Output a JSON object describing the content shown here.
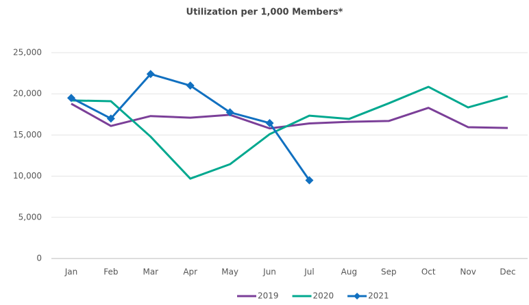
{
  "chart_data": {
    "type": "line",
    "title": "Utilization per 1,000 Members*",
    "categories": [
      "Jan",
      "Feb",
      "Mar",
      "Apr",
      "May",
      "Jun",
      "Jul",
      "Aug",
      "Sep",
      "Oct",
      "Nov",
      "Dec"
    ],
    "series": [
      {
        "name": "2019",
        "color": "#7b3f98",
        "values": [
          18800,
          16100,
          17300,
          17100,
          17450,
          15800,
          16400,
          16600,
          16700,
          18300,
          15950,
          15850
        ]
      },
      {
        "name": "2020",
        "color": "#00a88f",
        "values": [
          19200,
          19100,
          14800,
          9700,
          11450,
          15100,
          17350,
          16950,
          18850,
          20850,
          18350,
          19700
        ]
      },
      {
        "name": "2021",
        "color": "#1170c0",
        "marker": "diamond",
        "values": [
          19500,
          17000,
          22400,
          21000,
          17750,
          16450,
          9500,
          null,
          null,
          null,
          null,
          null
        ]
      }
    ],
    "ylim": [
      0,
      25000
    ],
    "yticks": [
      0,
      {
        "value": 5000,
        "label": "5,000"
      },
      {
        "value": 10000,
        "label": "10,000"
      },
      {
        "value": 15000,
        "label": "15,000"
      },
      {
        "value": 20000,
        "label": "20,000"
      },
      {
        "value": 25000,
        "label": "25,000"
      }
    ],
    "grid": true,
    "legend": "bottom"
  }
}
